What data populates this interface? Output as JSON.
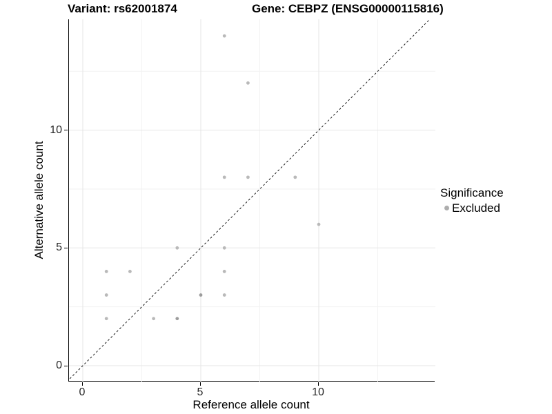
{
  "chart_data": {
    "type": "scatter",
    "titles": {
      "left": "Variant: rs62001874",
      "right": "Gene: CEBPZ (ENSG00000115816)"
    },
    "xlabel": "Reference allele count",
    "ylabel": "Alternative allele count",
    "x_ticks": [
      0,
      5,
      10
    ],
    "y_ticks": [
      0,
      5,
      10
    ],
    "x_minor_ticks": [
      2.5,
      7.5,
      12.5
    ],
    "y_minor_ticks": [
      2.5,
      7.5,
      12.5
    ],
    "xlim": [
      -0.7,
      14.9
    ],
    "ylim": [
      -0.7,
      14.7
    ],
    "grid": "major+minor",
    "reference_line": {
      "type": "identity y=x",
      "style": "dashed",
      "color": "#1a1a1a"
    },
    "legend": {
      "title": "Significance",
      "position": "right",
      "items": [
        {
          "label": "Excluded",
          "color": "#adadad"
        }
      ]
    },
    "series": [
      {
        "name": "Excluded",
        "points": [
          {
            "x": 1,
            "y": 2
          },
          {
            "x": 1,
            "y": 3
          },
          {
            "x": 1,
            "y": 4
          },
          {
            "x": 2,
            "y": 4
          },
          {
            "x": 3,
            "y": 2
          },
          {
            "x": 4,
            "y": 2,
            "overplotted": true
          },
          {
            "x": 4,
            "y": 5
          },
          {
            "x": 5,
            "y": 3,
            "overplotted": true
          },
          {
            "x": 6,
            "y": 3
          },
          {
            "x": 6,
            "y": 4
          },
          {
            "x": 6,
            "y": 5
          },
          {
            "x": 6,
            "y": 8
          },
          {
            "x": 6,
            "y": 14
          },
          {
            "x": 7,
            "y": 8
          },
          {
            "x": 7,
            "y": 12
          },
          {
            "x": 9,
            "y": 8
          },
          {
            "x": 10,
            "y": 6
          }
        ]
      }
    ],
    "colors": {
      "point": "#b9b9b9",
      "point_overplotted": "#9c9c9c",
      "grid_major": "#e5e5e5",
      "grid_minor": "#f2f2f2",
      "axis_line": "#000000",
      "tick_text": "#262626",
      "reference_line": "#1a1a1a"
    }
  }
}
